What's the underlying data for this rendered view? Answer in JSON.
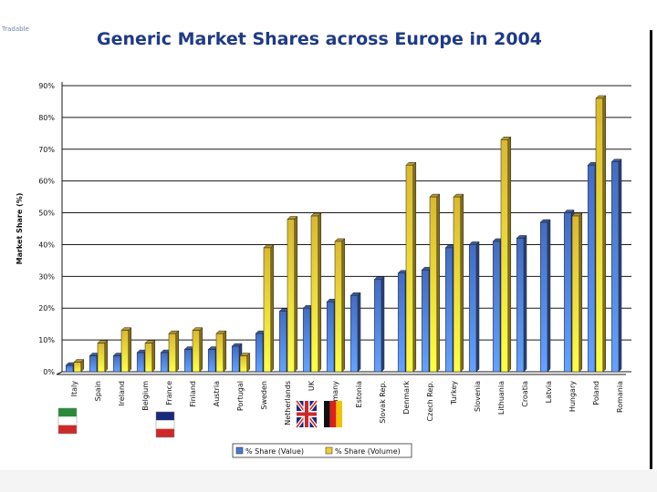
{
  "corner_text": "Tradable",
  "chart_data": {
    "type": "bar",
    "title": "Generic Market Shares across Europe in 2004",
    "ylabel": "Market Share (%)",
    "xlabel": "",
    "ylim": [
      0,
      90
    ],
    "ytick_labels": [
      "0%",
      "10%",
      "20%",
      "30%",
      "40%",
      "50%",
      "60%",
      "70%",
      "80%",
      "90%"
    ],
    "grid": true,
    "legend_position": "bottom",
    "categories": [
      "Italy",
      "Spain",
      "Ireland",
      "Belgium",
      "France",
      "Finland",
      "Austria",
      "Portugal",
      "Sweden",
      "Netherlands",
      "UK",
      "Germany",
      "Estonia",
      "Slovak Rep.",
      "Denmark",
      "Czech Rep.",
      "Turkey",
      "Slovenia",
      "Lithuania",
      "Croatia",
      "Latvia",
      "Hungary",
      "Poland",
      "Romania"
    ],
    "series": [
      {
        "name": "% Share (Value)",
        "color": "#4a78d8",
        "values": [
          2,
          5,
          5,
          6,
          6,
          7,
          7,
          8,
          12,
          19,
          20,
          22,
          24,
          29,
          31,
          32,
          39,
          40,
          41,
          42,
          47,
          50,
          65,
          66
        ]
      },
      {
        "name": "% Share (Volume)",
        "color": "#f2cc34",
        "values": [
          3,
          9,
          13,
          9,
          12,
          13,
          12,
          5,
          39,
          48,
          49,
          41,
          null,
          null,
          65,
          55,
          55,
          null,
          73,
          null,
          null,
          49,
          86,
          null
        ]
      }
    ]
  },
  "flags": [
    {
      "name": "italy-flag-icon",
      "colors": [
        "#2a8a3a",
        "#ffffff",
        "#cc2a2a"
      ],
      "orientation": "horizontal"
    },
    {
      "name": "france-flag-icon",
      "colors": [
        "#1a2a7a",
        "#ffffff",
        "#cc2a2a"
      ],
      "orientation": "horizontal"
    },
    {
      "name": "uk-flag-icon",
      "colors": [
        "#1a2a7a",
        "#ffffff",
        "#cc2a2a"
      ],
      "orientation": "union"
    },
    {
      "name": "germany-flag-icon",
      "colors": [
        "#111111",
        "#dd1f1f",
        "#f2c200"
      ],
      "orientation": "vertical"
    }
  ]
}
